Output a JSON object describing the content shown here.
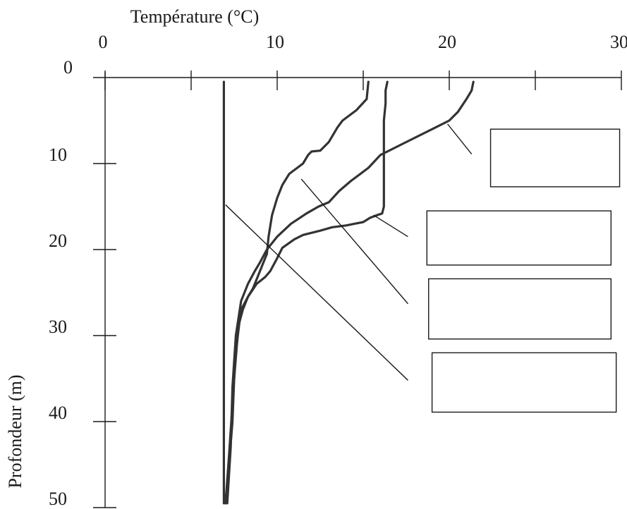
{
  "chart_data": {
    "type": "line",
    "title": "",
    "xlabel": "Température (°C)",
    "ylabel": "Profondeur (m)",
    "xlim": [
      0,
      30
    ],
    "ylim": [
      0,
      50
    ],
    "y_inverted": true,
    "x_axis_position": "top",
    "x_ticks": [
      0,
      10,
      20,
      30
    ],
    "x_tick_labels": [
      "0",
      "10",
      "20",
      "30"
    ],
    "x_minor_ticks": [
      5,
      15,
      25
    ],
    "y_ticks": [
      0,
      10,
      20,
      30,
      40,
      50
    ],
    "y_tick_labels": [
      "0",
      "10",
      "20",
      "30",
      "40",
      "50"
    ],
    "grid": false,
    "legend": "none",
    "series": [
      {
        "x": [
          6.9,
          6.9,
          6.9,
          6.9,
          6.9,
          6.9,
          6.9,
          6.9,
          6.9,
          6.9,
          6.9,
          6.9
        ],
        "y": [
          0.5,
          5,
          10,
          15,
          20,
          25,
          30,
          35,
          40,
          45,
          48,
          49.5
        ]
      },
      {
        "x": [
          15.3,
          15.2,
          14.6,
          13.8,
          13.5,
          13.0,
          12.5,
          12.0,
          11.8,
          11.5,
          10.7,
          10.3,
          10.0,
          9.7,
          9.5,
          9.4,
          9.0,
          8.8,
          8.6,
          8.3,
          8.0,
          7.8,
          7.6,
          7.4,
          7.2,
          7.0
        ],
        "y": [
          0.5,
          2.5,
          3.8,
          5.0,
          5.8,
          7.5,
          8.5,
          8.6,
          9.0,
          10.0,
          11.2,
          12.5,
          14.0,
          16.0,
          18.5,
          20.5,
          22.5,
          23.5,
          24.5,
          25.5,
          27.0,
          28.5,
          32.0,
          38.0,
          44.0,
          49.5
        ]
      },
      {
        "x": [
          16.4,
          16.3,
          16.3,
          16.2,
          16.2,
          16.2,
          16.1,
          15.8,
          15.4,
          15.0,
          14.0,
          13.2,
          12.5,
          11.5,
          11.0,
          10.3,
          10.0,
          9.6,
          9.3,
          8.8,
          8.3,
          7.9,
          7.7,
          7.5,
          7.4,
          7.2,
          7.0
        ],
        "y": [
          0.5,
          1.5,
          3.0,
          5.0,
          10.0,
          15.0,
          15.8,
          16.0,
          16.3,
          16.8,
          17.2,
          17.4,
          17.8,
          18.3,
          18.8,
          19.8,
          21.0,
          22.5,
          23.2,
          24.0,
          25.5,
          27.0,
          30.0,
          35.0,
          40.0,
          45.0,
          49.5
        ]
      },
      {
        "x": [
          21.4,
          21.3,
          21.0,
          20.5,
          20.0,
          19.2,
          17.5,
          16.0,
          15.3,
          14.3,
          13.6,
          13.0,
          12.4,
          11.7,
          10.8,
          10.0,
          9.4,
          9.0,
          8.7,
          8.3,
          7.9,
          7.6,
          7.4,
          7.3,
          7.1
        ],
        "y": [
          0.5,
          1.5,
          2.5,
          4.0,
          5.0,
          5.8,
          7.5,
          9.0,
          10.5,
          12.0,
          13.2,
          14.5,
          15.0,
          15.8,
          17.0,
          18.5,
          20.0,
          21.5,
          22.5,
          24.0,
          26.0,
          30.0,
          36.0,
          43.0,
          49.5
        ]
      }
    ],
    "callout_boxes": [
      {
        "x0": 22.4,
        "x1": 29.9,
        "y0": 6.0,
        "y1": 12.7,
        "text": ""
      },
      {
        "x0": 18.7,
        "x1": 29.4,
        "y0": 15.5,
        "y1": 21.8,
        "text": ""
      },
      {
        "x0": 18.8,
        "x1": 29.4,
        "y0": 23.4,
        "y1": 30.4,
        "text": ""
      },
      {
        "x0": 19.0,
        "x1": 29.7,
        "y0": 32.0,
        "y1": 38.9,
        "text": ""
      }
    ],
    "leader_lines": [
      {
        "x0": 19.9,
        "y0": 5.4,
        "x1": 21.3,
        "y1": 8.9
      },
      {
        "x0": 15.6,
        "y0": 16.0,
        "x1": 17.6,
        "y1": 18.5
      },
      {
        "x0": 11.4,
        "y0": 11.8,
        "x1": 17.6,
        "y1": 26.3
      },
      {
        "x0": 7.0,
        "y0": 14.8,
        "x1": 17.6,
        "y1": 35.2
      }
    ]
  }
}
